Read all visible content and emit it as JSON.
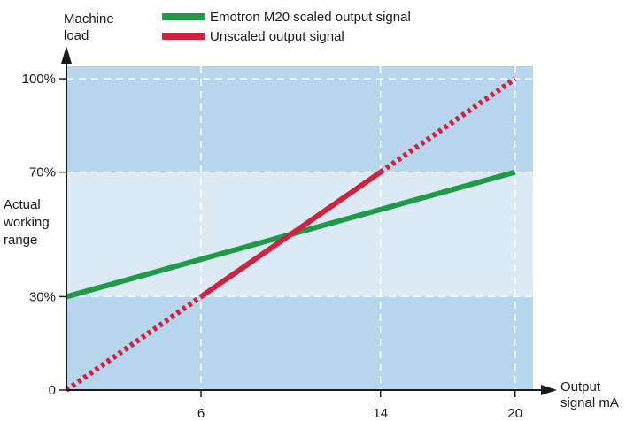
{
  "chart_data": {
    "type": "line",
    "ylabel": [
      "Machine",
      "load"
    ],
    "xlabel": [
      "Output",
      "signal mA"
    ],
    "band_label": [
      "Actual",
      "working",
      "range"
    ],
    "x_ticks": [
      "6",
      "14",
      "20"
    ],
    "x_tick_values": [
      6,
      14,
      20
    ],
    "y_ticks": [
      "0",
      "30%",
      "70%",
      "100%"
    ],
    "y_tick_values": [
      0,
      30,
      70,
      100
    ],
    "xlim": [
      0,
      20.8
    ],
    "ylim": [
      0,
      104
    ],
    "working_range": [
      30,
      70
    ],
    "grid": true,
    "legend_position": "top",
    "series": [
      {
        "name": "Emotron M20 scaled output signal",
        "color": "#1e9a48",
        "points": [
          [
            0,
            30
          ],
          [
            20,
            70
          ]
        ]
      },
      {
        "name": "Unscaled output signal",
        "color": "#cf2140",
        "points": [
          [
            0,
            0
          ],
          [
            20,
            100
          ]
        ],
        "solid_range": [
          6,
          14
        ]
      }
    ],
    "colors": {
      "outer_band": "#b7d6ee",
      "working_band": "#dceaf6",
      "grid": "#ffffff",
      "axis": "#1a1a1a"
    }
  }
}
